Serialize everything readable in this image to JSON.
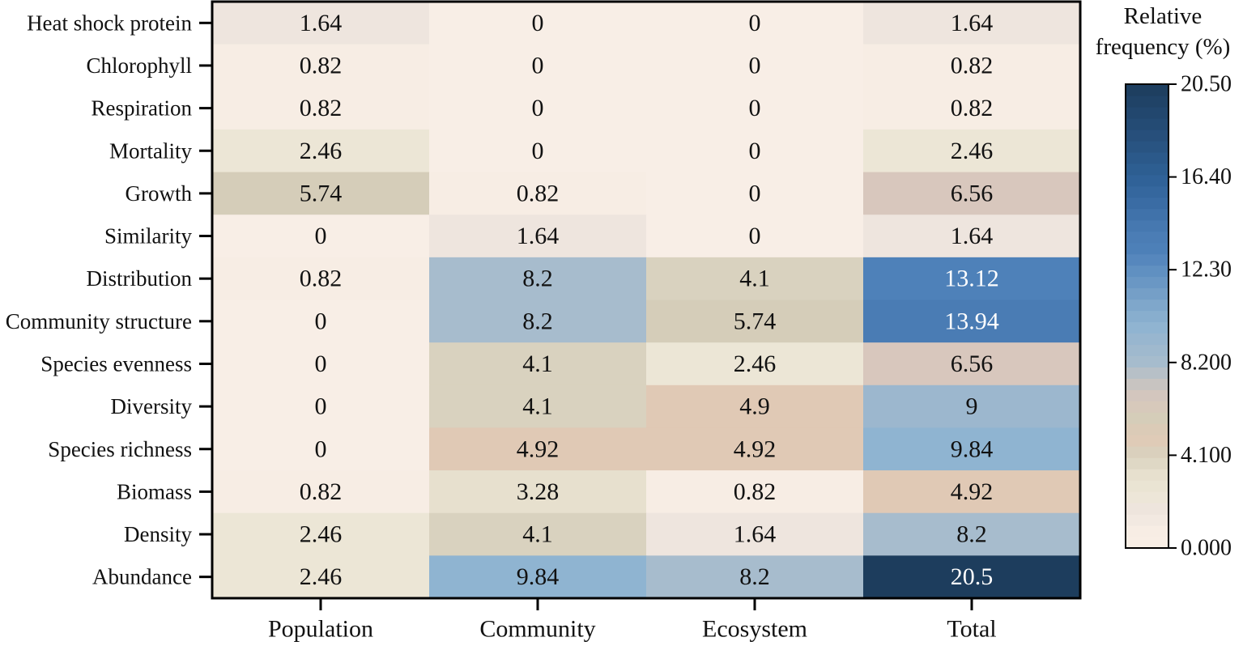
{
  "chart_data": {
    "type": "heatmap",
    "title": "",
    "x_categories": [
      "Population",
      "Community",
      "Ecosystem",
      "Total"
    ],
    "y_categories": [
      "Heat shock protein",
      "Chlorophyll",
      "Respiration",
      "Mortality",
      "Growth",
      "Similarity",
      "Distribution",
      "Community structure",
      "Species evenness",
      "Diversity",
      "Species richness",
      "Biomass",
      "Density",
      "Abundance"
    ],
    "values": [
      [
        1.64,
        0,
        0,
        1.64
      ],
      [
        0.82,
        0,
        0,
        0.82
      ],
      [
        0.82,
        0,
        0,
        0.82
      ],
      [
        2.46,
        0,
        0,
        2.46
      ],
      [
        5.74,
        0.82,
        0,
        6.56
      ],
      [
        0,
        1.64,
        0,
        1.64
      ],
      [
        0.82,
        8.2,
        4.1,
        13.12
      ],
      [
        0,
        8.2,
        5.74,
        13.94
      ],
      [
        0,
        4.1,
        2.46,
        6.56
      ],
      [
        0,
        4.1,
        4.9,
        9
      ],
      [
        0,
        4.92,
        4.92,
        9.84
      ],
      [
        0.82,
        3.28,
        0.82,
        4.92
      ],
      [
        2.46,
        4.1,
        1.64,
        8.2
      ],
      [
        2.46,
        9.84,
        8.2,
        20.5
      ]
    ],
    "colorbar": {
      "title_lines": [
        "Relative",
        "frequency (%)"
      ],
      "range": [
        0,
        20.5
      ],
      "ticks": [
        0,
        4.1,
        8.2,
        12.3,
        16.4,
        20.5
      ],
      "tick_labels": [
        "0.000",
        "4.100",
        "8.200",
        "12.30",
        "16.40",
        "20.50"
      ]
    },
    "colormap": [
      {
        "value": 0,
        "color": "#f8eee6"
      },
      {
        "value": 0.82,
        "color": "#f7ede4"
      },
      {
        "value": 1.64,
        "color": "#eee5de"
      },
      {
        "value": 2.46,
        "color": "#ece6d6"
      },
      {
        "value": 3.28,
        "color": "#e7e0ce"
      },
      {
        "value": 4.1,
        "color": "#d9d2bf"
      },
      {
        "value": 4.9,
        "color": "#e0c9b5"
      },
      {
        "value": 5.74,
        "color": "#d5cdb9"
      },
      {
        "value": 6.56,
        "color": "#d8c7bd"
      },
      {
        "value": 7.4,
        "color": "#c4c3c2"
      },
      {
        "value": 8.2,
        "color": "#a7bccd"
      },
      {
        "value": 9.0,
        "color": "#9cb7ce"
      },
      {
        "value": 9.84,
        "color": "#8fb4d1"
      },
      {
        "value": 11.0,
        "color": "#7aa3c9"
      },
      {
        "value": 12.3,
        "color": "#5f8fc1"
      },
      {
        "value": 13.12,
        "color": "#4e81b9"
      },
      {
        "value": 13.94,
        "color": "#4a7cb4"
      },
      {
        "value": 15.2,
        "color": "#3b6da5"
      },
      {
        "value": 16.4,
        "color": "#2f6196"
      },
      {
        "value": 18.4,
        "color": "#264e79"
      },
      {
        "value": 20.5,
        "color": "#1d3d5d"
      }
    ],
    "label_colors": {
      "on_light": "#111111",
      "on_dark": "#ffffff"
    }
  }
}
